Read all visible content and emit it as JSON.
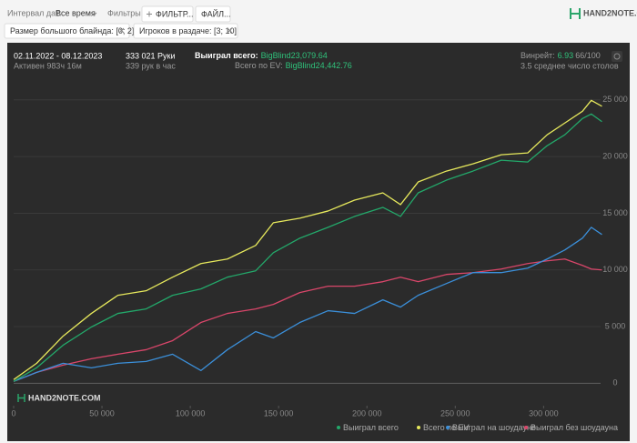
{
  "toolbar": {
    "date_label": "Интервал дат:",
    "date_value": "Все время",
    "filters_label": "Фильтры:",
    "filter_button": "ФИЛЬТР...",
    "file_button": "ФАЙЛ...",
    "logo": "HAND2NOTE.COM"
  },
  "chips": [
    "Размер большого блайнда: [0; 2]",
    "Игроков в раздаче: [3; 10]"
  ],
  "stats": {
    "date_range": "02.11.2022 - 08.12.2023",
    "active": "Активен 983ч 16м",
    "hands": "333 021 Руки",
    "hands_per_hour": "339 рук в час",
    "won_label": "Выиграл всего:",
    "won_value": "BigBlind23,079.64",
    "ev_label": "Всего по EV:",
    "ev_value": "BigBlind24,442.76",
    "winrate_label": "Винрейт:",
    "winrate_value": "6.93",
    "winrate_unit": "66/100",
    "tables": "3.5 среднее число столов"
  },
  "chart_data": {
    "type": "line",
    "watermark": "HAND2NOTE.COM",
    "x": [
      0,
      13000,
      28000,
      44000,
      59000,
      75000,
      90000,
      106000,
      121000,
      137000,
      147000,
      162000,
      178000,
      193000,
      209000,
      219000,
      229000,
      245000,
      260000,
      276000,
      291000,
      302000,
      312000,
      322000,
      327000,
      333021
    ],
    "series": [
      {
        "name": "Выиграл всего",
        "color": "#23a86a",
        "values": [
          160,
          1360,
          3360,
          4960,
          6160,
          6560,
          7760,
          8320,
          9360,
          9920,
          11520,
          12800,
          13760,
          14720,
          15520,
          14720,
          16800,
          17920,
          18720,
          19680,
          19520,
          20960,
          21920,
          23360,
          23760,
          23080
        ]
      },
      {
        "name": "Всего по EV",
        "color": "#e6e85c",
        "values": [
          320,
          1760,
          4160,
          6160,
          7760,
          8160,
          9360,
          10560,
          10960,
          12160,
          14160,
          14560,
          15200,
          16160,
          16800,
          15760,
          17760,
          18720,
          19360,
          20160,
          20320,
          21920,
          22960,
          24000,
          24960,
          24443
        ]
      },
      {
        "name": "Выиграл на шоудауне",
        "color": "#3b8fd9",
        "values": [
          160,
          960,
          1760,
          1360,
          1760,
          1920,
          2560,
          1120,
          2960,
          4560,
          4000,
          5360,
          6400,
          6160,
          7360,
          6720,
          7760,
          8800,
          9760,
          9760,
          10160,
          10960,
          11760,
          12800,
          13760,
          13120
        ]
      },
      {
        "name": "Выиграл без шоудауна",
        "color": "#d9466a",
        "values": [
          160,
          960,
          1600,
          2160,
          2560,
          2960,
          3760,
          5360,
          6160,
          6560,
          6960,
          8000,
          8560,
          8560,
          8960,
          9360,
          8960,
          9600,
          9760,
          10080,
          10560,
          10800,
          10960,
          10400,
          10080,
          10000
        ]
      }
    ],
    "xlim": [
      0,
      340000
    ],
    "ylim": [
      -1500,
      29000
    ],
    "xticks": [
      0,
      {
        "value": 50000,
        "label": "50 000"
      },
      {
        "value": 100000,
        "label": "100 000"
      },
      {
        "value": 150000,
        "label": "150 000"
      },
      {
        "value": 200000,
        "label": "200 000"
      },
      {
        "value": 250000,
        "label": "250 000"
      },
      {
        "value": 300000,
        "label": "300 000"
      }
    ],
    "yticks": [
      0,
      {
        "value": 5000,
        "label": "5 000"
      },
      {
        "value": 10000,
        "label": "10 000"
      },
      {
        "value": 15000,
        "label": "15 000"
      },
      {
        "value": 20000,
        "label": "20 000"
      },
      {
        "value": 25000,
        "label": "25 000"
      }
    ],
    "grid": true
  }
}
